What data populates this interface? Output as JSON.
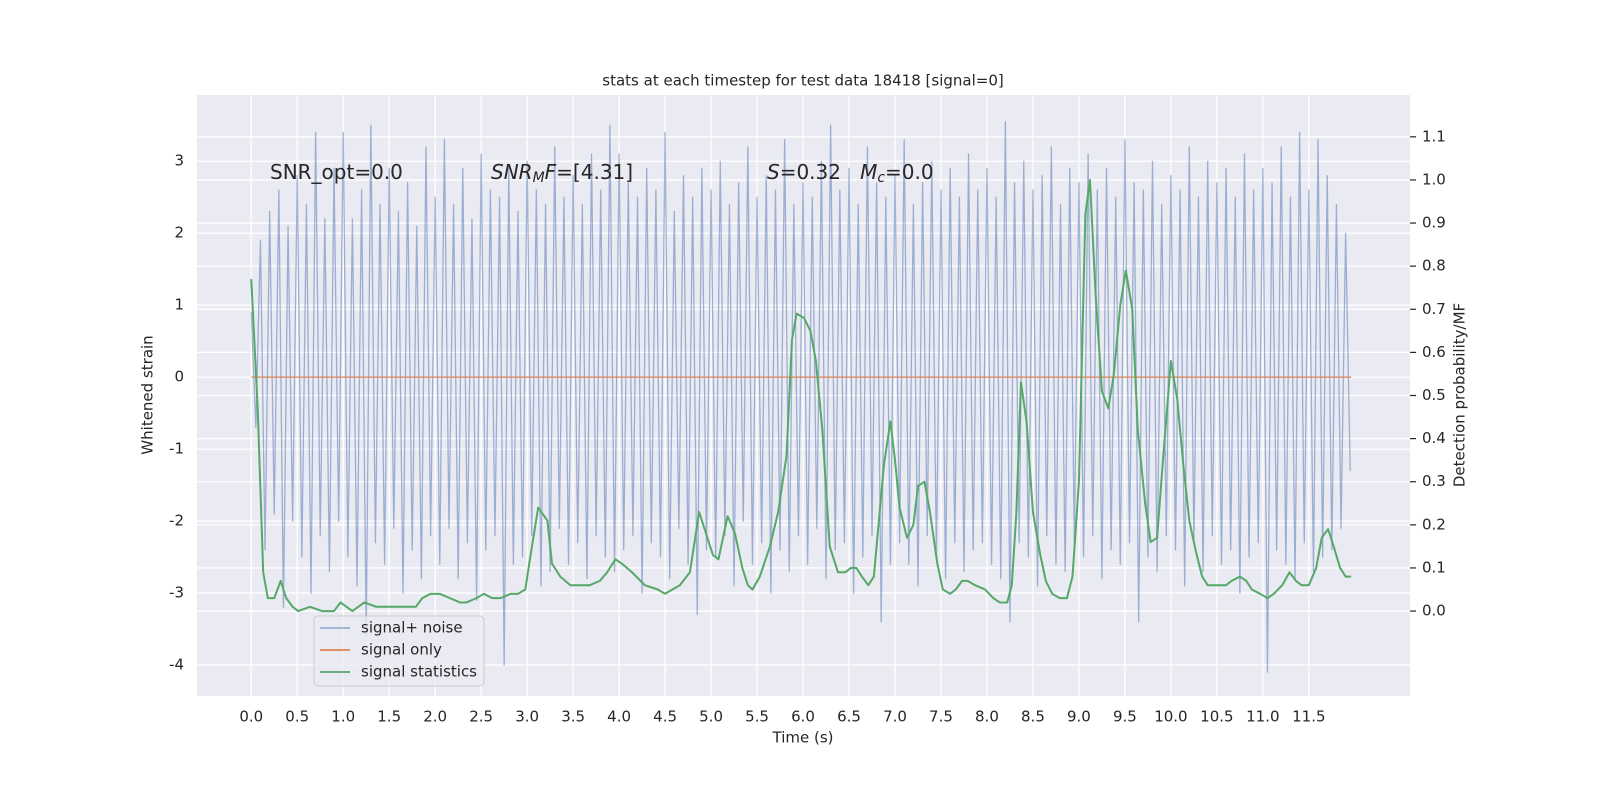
{
  "chart_data": {
    "type": "line",
    "title": "stats at each timestep for test data 18418 [signal=0]",
    "xlabel": "Time (s)",
    "ylabel": "Whitened strain",
    "y2label": "Detection probability/MF",
    "annotations": [
      [
        {
          "text": "SNR_opt=0.0"
        }
      ],
      [
        {
          "text": "SNR",
          "style": "italic"
        },
        {
          "text": "M",
          "style": "sub-italic"
        },
        {
          "text": "F",
          "style": "italic"
        },
        {
          "text": "=[4.31]"
        }
      ],
      [
        {
          "text": "S",
          "style": "italic"
        },
        {
          "text": "=0.32   "
        },
        {
          "text": "M",
          "style": "italic"
        },
        {
          "text": "c",
          "style": "sub-italic"
        },
        {
          "text": "=0.0"
        }
      ]
    ],
    "xlim": [
      -0.59,
      12.6
    ],
    "ylim": [
      -4.43,
      3.92
    ],
    "y2lim": [
      -0.197,
      1.197
    ],
    "xticks": [
      {
        "value": 0,
        "label": "0.0"
      },
      0.5,
      {
        "value": 1,
        "label": "1.0"
      },
      1.5,
      {
        "value": 2,
        "label": "2.0"
      },
      2.5,
      {
        "value": 3,
        "label": "3.0"
      },
      3.5,
      {
        "value": 4,
        "label": "4.0"
      },
      4.5,
      {
        "value": 5,
        "label": "5.0"
      },
      5.5,
      {
        "value": 6,
        "label": "6.0"
      },
      6.5,
      {
        "value": 7,
        "label": "7.0"
      },
      7.5,
      {
        "value": 8,
        "label": "8.0"
      },
      8.5,
      {
        "value": 9,
        "label": "9.0"
      },
      9.5,
      {
        "value": 10,
        "label": "10.0"
      },
      10.5,
      {
        "value": 11,
        "label": "11.0"
      },
      11.5
    ],
    "yticks": [
      -4,
      -3,
      -2,
      -1,
      0,
      1,
      2,
      3
    ],
    "y2ticks": [
      {
        "value": 0,
        "label": "0.0"
      },
      0.1,
      0.2,
      0.3,
      0.4,
      0.5,
      0.6,
      0.7,
      0.8,
      0.9,
      {
        "value": 1,
        "label": "1.0"
      },
      1.1
    ],
    "grid": true,
    "legend": "lower left",
    "series": [
      {
        "name": "signal+ noise",
        "color": "#4c72b0",
        "opacity": 0.5,
        "x": [
          0,
          0.05,
          0.1,
          0.15,
          0.2,
          0.25,
          0.3,
          0.35,
          0.4,
          0.45,
          0.5,
          0.55,
          0.6,
          0.65,
          0.7,
          0.75,
          0.8,
          0.85,
          0.9,
          0.95,
          1,
          1.05,
          1.1,
          1.15,
          1.2,
          1.25,
          1.3,
          1.35,
          1.4,
          1.45,
          1.5,
          1.55,
          1.6,
          1.65,
          1.7,
          1.75,
          1.8,
          1.85,
          1.9,
          1.95,
          2,
          2.05,
          2.1,
          2.15,
          2.2,
          2.25,
          2.3,
          2.35,
          2.4,
          2.45,
          2.5,
          2.55,
          2.6,
          2.65,
          2.7,
          2.75,
          2.8,
          2.85,
          2.9,
          2.95,
          3,
          3.05,
          3.1,
          3.15,
          3.2,
          3.25,
          3.3,
          3.35,
          3.4,
          3.45,
          3.5,
          3.55,
          3.6,
          3.65,
          3.7,
          3.75,
          3.8,
          3.85,
          3.9,
          3.95,
          4,
          4.05,
          4.1,
          4.15,
          4.2,
          4.25,
          4.3,
          4.35,
          4.4,
          4.45,
          4.5,
          4.55,
          4.6,
          4.65,
          4.7,
          4.75,
          4.8,
          4.85,
          4.9,
          4.95,
          5,
          5.05,
          5.1,
          5.15,
          5.2,
          5.25,
          5.3,
          5.35,
          5.4,
          5.45,
          5.5,
          5.55,
          5.6,
          5.65,
          5.7,
          5.75,
          5.8,
          5.85,
          5.9,
          5.95,
          6,
          6.05,
          6.1,
          6.15,
          6.2,
          6.25,
          6.3,
          6.35,
          6.4,
          6.45,
          6.5,
          6.55,
          6.6,
          6.65,
          6.7,
          6.75,
          6.8,
          6.85,
          6.9,
          6.95,
          7,
          7.05,
          7.1,
          7.15,
          7.2,
          7.25,
          7.3,
          7.35,
          7.4,
          7.45,
          7.5,
          7.55,
          7.6,
          7.65,
          7.7,
          7.75,
          7.8,
          7.85,
          7.9,
          7.95,
          8,
          8.05,
          8.1,
          8.15,
          8.2,
          8.25,
          8.3,
          8.35,
          8.4,
          8.45,
          8.5,
          8.55,
          8.6,
          8.65,
          8.7,
          8.75,
          8.8,
          8.85,
          8.9,
          8.95,
          9,
          9.05,
          9.1,
          9.15,
          9.2,
          9.25,
          9.3,
          9.35,
          9.4,
          9.45,
          9.5,
          9.55,
          9.6,
          9.65,
          9.7,
          9.75,
          9.8,
          9.85,
          9.9,
          9.95,
          10,
          10.05,
          10.1,
          10.15,
          10.2,
          10.25,
          10.3,
          10.35,
          10.4,
          10.45,
          10.5,
          10.55,
          10.6,
          10.65,
          10.7,
          10.75,
          10.8,
          10.85,
          10.9,
          10.95,
          11,
          11.05,
          11.1,
          11.15,
          11.2,
          11.25,
          11.3,
          11.35,
          11.4,
          11.45,
          11.5,
          11.55,
          11.6,
          11.65,
          11.7,
          11.75,
          11.8,
          11.85,
          11.9,
          11.95
        ],
        "values": [
          0.9,
          -0.7,
          1.9,
          -2.4,
          2.3,
          -1.9,
          2.6,
          -3.2,
          2.1,
          -2.0,
          2.8,
          -2.5,
          2.4,
          -3.0,
          3.4,
          -2.2,
          2.2,
          -2.7,
          2.9,
          -2.0,
          3.4,
          -2.5,
          2.2,
          -2.9,
          2.6,
          -3.6,
          3.5,
          -2.3,
          2.4,
          -2.6,
          2.9,
          -2.1,
          2.3,
          -3.0,
          2.7,
          -2.4,
          2.1,
          -2.8,
          3.2,
          -2.2,
          2.5,
          -2.6,
          3.3,
          -2.1,
          2.4,
          -2.8,
          2.9,
          -2.3,
          2.2,
          -3.1,
          3.1,
          -2.4,
          2.6,
          -2.2,
          2.5,
          -4.0,
          2.9,
          -2.6,
          2.3,
          -2.5,
          3.0,
          -2.2,
          2.6,
          -2.9,
          2.4,
          -2.7,
          3.2,
          -2.1,
          2.5,
          -2.6,
          2.8,
          -2.3,
          2.4,
          -2.8,
          3.1,
          -2.2,
          2.6,
          -2.5,
          3.5,
          -2.7,
          3.1,
          -2.4,
          2.7,
          -2.2,
          2.5,
          -3.0,
          2.9,
          -2.3,
          2.6,
          -2.5,
          3.4,
          -2.8,
          2.3,
          -2.1,
          2.8,
          -2.6,
          2.5,
          -3.3,
          2.9,
          -2.4,
          2.6,
          -2.5,
          3.0,
          -2.2,
          2.4,
          -2.9,
          2.7,
          -2.0,
          3.2,
          -2.6,
          2.5,
          -2.3,
          2.8,
          -3.0,
          2.6,
          -2.4,
          3.3,
          -2.7,
          2.4,
          -2.2,
          2.7,
          -2.6,
          2.5,
          -2.1,
          3.0,
          -2.8,
          3.5,
          -2.4,
          2.6,
          -2.3,
          2.9,
          -3.0,
          2.4,
          -2.5,
          3.2,
          -2.2,
          2.7,
          -3.4,
          2.5,
          -2.6,
          2.8,
          -2.3,
          3.3,
          -2.6,
          2.4,
          -2.9,
          2.7,
          -2.2,
          3.0,
          -2.5,
          2.6,
          -2.8,
          2.9,
          -2.3,
          2.5,
          -2.7,
          3.1,
          -2.4,
          2.6,
          -2.3,
          2.9,
          -2.6,
          2.5,
          -2.8,
          3.55,
          -3.4,
          2.7,
          -2.3,
          3.0,
          -2.5,
          2.6,
          -2.9,
          2.8,
          -2.2,
          3.2,
          -2.6,
          2.4,
          -2.7,
          2.9,
          -2.3,
          2.7,
          -2.5,
          3.1,
          -2.2,
          2.6,
          -2.8,
          2.9,
          -2.4,
          2.5,
          -2.6,
          3.3,
          -2.3,
          2.7,
          -3.4,
          2.6,
          -2.5,
          3.0,
          -2.7,
          2.4,
          -2.2,
          2.8,
          -2.4,
          2.6,
          -2.9,
          3.2,
          -2.3,
          2.5,
          -2.7,
          3.0,
          -2.2,
          2.7,
          -2.6,
          2.9,
          -2.4,
          2.5,
          -3.0,
          3.1,
          -2.5,
          2.6,
          -2.3,
          2.9,
          -4.1,
          2.7,
          -2.4,
          3.2,
          -2.6,
          2.5,
          -2.8,
          3.4,
          -2.3,
          2.6,
          -2.7,
          3.3,
          -2.5,
          2.8,
          -2.4,
          2.4,
          -2.1,
          2.0,
          -1.3
        ]
      },
      {
        "name": "signal only",
        "color": "#dd8452",
        "x": [
          0,
          11.96
        ],
        "values": [
          0,
          0
        ]
      },
      {
        "name": "signal statistics",
        "color": "#55a868",
        "axis": "y2",
        "x": [
          0,
          0.07,
          0.13,
          0.18,
          0.25,
          0.32,
          0.38,
          0.45,
          0.51,
          0.64,
          0.77,
          0.9,
          0.97,
          1.1,
          1.23,
          1.36,
          1.51,
          1.66,
          1.79,
          1.86,
          1.95,
          2.05,
          2.16,
          2.27,
          2.34,
          2.45,
          2.53,
          2.62,
          2.71,
          2.82,
          2.9,
          2.98,
          3.03,
          3.12,
          3.22,
          3.27,
          3.36,
          3.47,
          3.68,
          3.79,
          3.87,
          3.96,
          4.03,
          4.14,
          4.28,
          4.42,
          4.5,
          4.58,
          4.66,
          4.77,
          4.87,
          4.93,
          5.02,
          5.08,
          5.18,
          5.26,
          5.34,
          5.4,
          5.45,
          5.53,
          5.64,
          5.73,
          5.82,
          5.88,
          5.93,
          6.01,
          6.08,
          6.14,
          6.21,
          6.29,
          6.38,
          6.46,
          6.52,
          6.58,
          6.64,
          6.71,
          6.77,
          6.88,
          6.95,
          7,
          7.05,
          7.13,
          7.2,
          7.25,
          7.32,
          7.38,
          7.46,
          7.52,
          7.6,
          7.66,
          7.73,
          7.79,
          7.87,
          7.98,
          8.07,
          8.14,
          8.22,
          8.27,
          8.32,
          8.37,
          8.43,
          8.5,
          8.58,
          8.64,
          8.71,
          8.79,
          8.87,
          8.93,
          9,
          9.07,
          9.12,
          9.18,
          9.25,
          9.32,
          9.38,
          9.45,
          9.51,
          9.58,
          9.64,
          9.72,
          9.78,
          9.85,
          9.91,
          10,
          10.07,
          10.13,
          10.2,
          10.27,
          10.34,
          10.4,
          10.47,
          10.6,
          10.66,
          10.75,
          10.82,
          10.88,
          10.97,
          11.05,
          11.12,
          11.21,
          11.29,
          11.36,
          11.42,
          11.5,
          11.58,
          11.64,
          11.71,
          11.77,
          11.84,
          11.9,
          11.96
        ],
        "values": [
          0.77,
          0.47,
          0.09,
          0.03,
          0.03,
          0.07,
          0.03,
          0.01,
          0,
          0.01,
          0,
          0,
          0.02,
          0,
          0.02,
          0.01,
          0.01,
          0.01,
          0.01,
          0.03,
          0.04,
          0.04,
          0.03,
          0.02,
          0.02,
          0.03,
          0.04,
          0.03,
          0.03,
          0.04,
          0.04,
          0.05,
          0.12,
          0.24,
          0.21,
          0.11,
          0.08,
          0.06,
          0.06,
          0.07,
          0.09,
          0.12,
          0.11,
          0.09,
          0.06,
          0.05,
          0.04,
          0.05,
          0.06,
          0.09,
          0.23,
          0.19,
          0.13,
          0.12,
          0.22,
          0.18,
          0.1,
          0.06,
          0.05,
          0.08,
          0.15,
          0.23,
          0.36,
          0.63,
          0.69,
          0.68,
          0.65,
          0.58,
          0.42,
          0.15,
          0.09,
          0.09,
          0.1,
          0.1,
          0.08,
          0.06,
          0.08,
          0.34,
          0.44,
          0.35,
          0.24,
          0.17,
          0.2,
          0.29,
          0.3,
          0.23,
          0.11,
          0.05,
          0.04,
          0.05,
          0.07,
          0.07,
          0.06,
          0.05,
          0.03,
          0.02,
          0.02,
          0.06,
          0.23,
          0.53,
          0.44,
          0.23,
          0.13,
          0.07,
          0.04,
          0.03,
          0.03,
          0.08,
          0.3,
          0.92,
          1,
          0.74,
          0.51,
          0.47,
          0.55,
          0.71,
          0.79,
          0.7,
          0.42,
          0.25,
          0.16,
          0.17,
          0.34,
          0.58,
          0.49,
          0.35,
          0.21,
          0.14,
          0.08,
          0.06,
          0.06,
          0.06,
          0.07,
          0.08,
          0.07,
          0.05,
          0.04,
          0.03,
          0.04,
          0.06,
          0.09,
          0.07,
          0.06,
          0.06,
          0.1,
          0.17,
          0.19,
          0.15,
          0.1,
          0.08,
          0.08
        ]
      }
    ]
  }
}
